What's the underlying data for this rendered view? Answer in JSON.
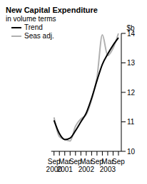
{
  "chart_data": {
    "type": "line",
    "title": "New Capital Expenditure",
    "subtitle": "in volume terms",
    "ylabel": "$b",
    "categories": [
      "Sep 2000",
      null,
      "Mar 2001",
      null,
      "Sep",
      null,
      "Mar 2002",
      null,
      "Sep",
      null,
      "Mar 2003",
      null,
      "Sep"
    ],
    "series": [
      {
        "name": "Trend",
        "color": "#000000",
        "values": [
          11.05,
          10.6,
          10.4,
          10.45,
          10.7,
          11.0,
          11.3,
          11.8,
          12.4,
          12.95,
          13.3,
          13.6,
          13.85
        ]
      },
      {
        "name": "Seas adj.",
        "color": "#b0b0b0",
        "values": [
          11.15,
          10.5,
          10.4,
          10.35,
          10.85,
          11.1,
          11.25,
          11.75,
          12.5,
          13.95,
          13.25,
          13.5,
          14.0
        ]
      }
    ],
    "ylim": [
      10,
      14
    ],
    "yticks": [
      10,
      11,
      12,
      13,
      14
    ],
    "grid": false,
    "legend": "top-left"
  }
}
